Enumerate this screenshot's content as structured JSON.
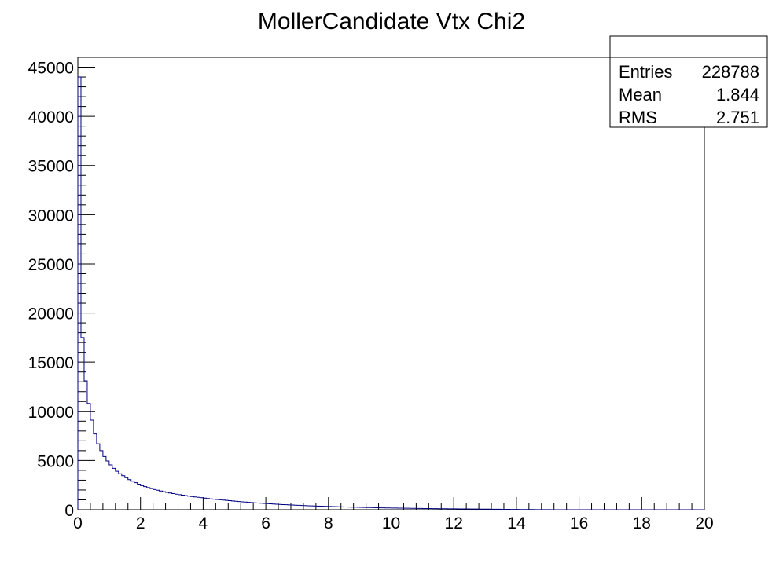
{
  "chart_data": {
    "type": "bar",
    "title": "MollerCandidate Vtx Chi2",
    "xlabel": "",
    "ylabel": "",
    "xlim": [
      0,
      20
    ],
    "ylim": [
      0,
      46000
    ],
    "x_ticks": [
      "0",
      "2",
      "4",
      "6",
      "8",
      "10",
      "12",
      "14",
      "16",
      "18",
      "20"
    ],
    "y_ticks": [
      "0",
      "5000",
      "10000",
      "15000",
      "20000",
      "25000",
      "30000",
      "35000",
      "40000",
      "45000"
    ],
    "bin_width": 0.1,
    "line_color": "#000080",
    "grid": false,
    "values": [
      44000,
      17500,
      13100,
      10800,
      9100,
      7700,
      6700,
      6000,
      5400,
      4950,
      4550,
      4200,
      3900,
      3650,
      3450,
      3250,
      3050,
      2900,
      2750,
      2600,
      2450,
      2350,
      2250,
      2150,
      2050,
      1980,
      1900,
      1830,
      1760,
      1700,
      1640,
      1580,
      1530,
      1480,
      1430,
      1380,
      1340,
      1300,
      1260,
      1220,
      1180,
      1140,
      1100,
      1070,
      1040,
      1010,
      980,
      950,
      920,
      890,
      860,
      830,
      800,
      775,
      750,
      725,
      700,
      680,
      660,
      640,
      620,
      600,
      580,
      560,
      540,
      520,
      505,
      490,
      475,
      460,
      445,
      430,
      415,
      400,
      390,
      380,
      370,
      360,
      350,
      340,
      330,
      320,
      310,
      300,
      290,
      280,
      272,
      264,
      256,
      248,
      240,
      232,
      224,
      216,
      208,
      200,
      194,
      188,
      182,
      176,
      170,
      165,
      160,
      155,
      150,
      145,
      140,
      136,
      132,
      128,
      124,
      120,
      116,
      112,
      108,
      104,
      100,
      97,
      94,
      91,
      88,
      85,
      82,
      79,
      76,
      73,
      70,
      67,
      64,
      61,
      58,
      55,
      52,
      49,
      46,
      43,
      40,
      37,
      34,
      31,
      28,
      25,
      22,
      20,
      18,
      16,
      14,
      12,
      10,
      8,
      6,
      5,
      4,
      3,
      2,
      2,
      1,
      1,
      0,
      0,
      0,
      0,
      0,
      0,
      0,
      0,
      0,
      0,
      0,
      0,
      0,
      0,
      0,
      0,
      0,
      0,
      0,
      0,
      0,
      0,
      0,
      0,
      0,
      0,
      0,
      0,
      0,
      0,
      0,
      0,
      0,
      0,
      0,
      0,
      0,
      0,
      0,
      0,
      0,
      0
    ]
  },
  "stats_box": {
    "header": "",
    "rows": [
      {
        "label": "Entries",
        "value": "228788"
      },
      {
        "label": "Mean",
        "value": "1.844"
      },
      {
        "label": "RMS",
        "value": "2.751"
      }
    ]
  }
}
